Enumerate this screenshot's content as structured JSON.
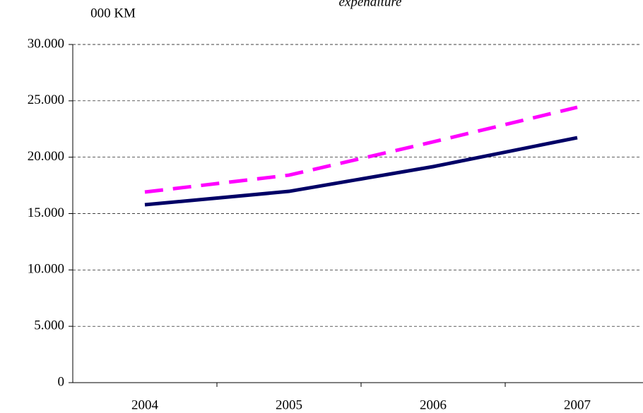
{
  "chart_data": {
    "type": "line",
    "title": "expenditure",
    "y_label": "000 KM",
    "categories": [
      "2004",
      "2005",
      "2006",
      "2007"
    ],
    "series": [
      {
        "color": "#000066",
        "dash": false,
        "values": [
          15780,
          16970,
          19165,
          21730
        ]
      },
      {
        "color": "#ff00ff",
        "dash": true,
        "values": [
          16910,
          18410,
          21360,
          24430
        ]
      }
    ],
    "ylim": [
      0,
      30000
    ],
    "yticks": [
      0,
      {
        "value": 5000,
        "label": "5.000"
      },
      {
        "value": 10000,
        "label": "10.000"
      },
      {
        "value": 15000,
        "label": "15.000"
      },
      {
        "value": 20000,
        "label": "20.000"
      },
      {
        "value": 25000,
        "label": "25.000"
      },
      {
        "value": 30000,
        "label": "30.000"
      }
    ],
    "grid": true
  }
}
